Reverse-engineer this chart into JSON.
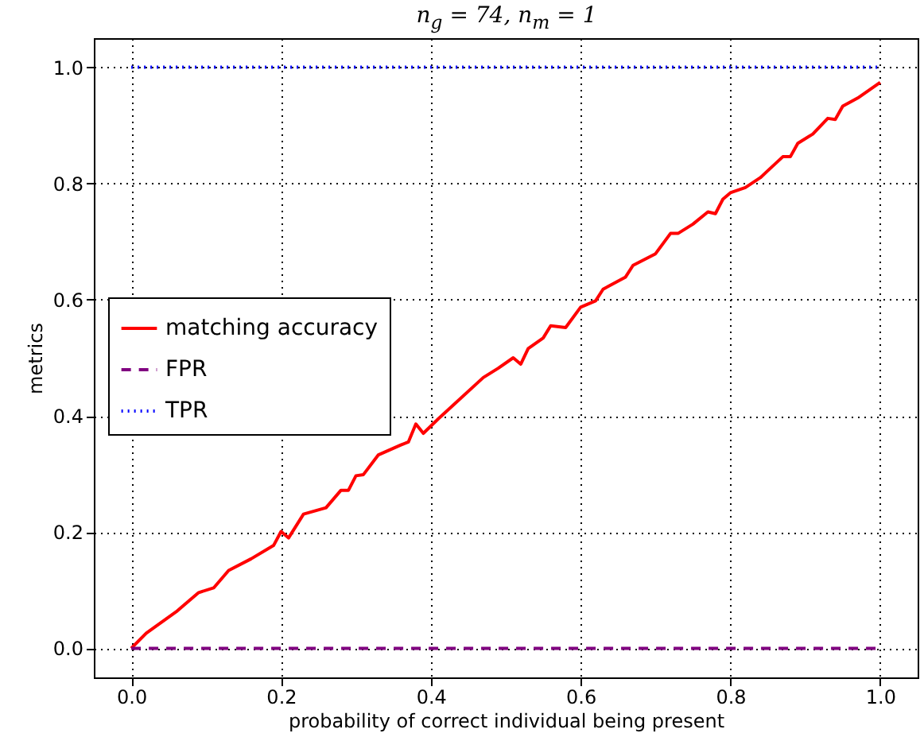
{
  "chart_data": {
    "type": "line",
    "title": "n$_{g}$ = 74, n$_{m}$ = 1",
    "xlabel": "probability of correct individual being present",
    "ylabel": "metrics",
    "xlim": [
      -0.05,
      1.05
    ],
    "ylim": [
      -0.05,
      1.05
    ],
    "xticks": [
      {
        "value": 0,
        "label": "0.0"
      },
      {
        "value": 0.2,
        "label": "0.2"
      },
      {
        "value": 0.4,
        "label": "0.4"
      },
      {
        "value": 0.6,
        "label": "0.6"
      },
      {
        "value": 0.8,
        "label": "0.8"
      },
      {
        "value": 1,
        "label": "1.0"
      }
    ],
    "yticks": [
      {
        "value": 0,
        "label": "0.0"
      },
      {
        "value": 0.2,
        "label": "0.2"
      },
      {
        "value": 0.4,
        "label": "0.4"
      },
      {
        "value": 0.6,
        "label": "0.6"
      },
      {
        "value": 0.8,
        "label": "0.8"
      },
      {
        "value": 1,
        "label": "1.0"
      }
    ],
    "grid": true,
    "legend": "left",
    "marker": "none",
    "series": [
      {
        "name": "matching accuracy",
        "color": "#ff0000",
        "line_style": "solid",
        "x": [
          0,
          0.02,
          0.06,
          0.09,
          0.11,
          0.13,
          0.16,
          0.19,
          0.2,
          0.21,
          0.23,
          0.26,
          0.28,
          0.29,
          0.3,
          0.31,
          0.33,
          0.36,
          0.37,
          0.38,
          0.39,
          0.41,
          0.47,
          0.49,
          0.51,
          0.52,
          0.53,
          0.55,
          0.56,
          0.58,
          0.6,
          0.62,
          0.63,
          0.66,
          0.67,
          0.7,
          0.72,
          0.73,
          0.75,
          0.77,
          0.78,
          0.79,
          0.8,
          0.82,
          0.84,
          0.85,
          0.87,
          0.88,
          0.89,
          0.91,
          0.93,
          0.94,
          0.95,
          0.97,
          1
        ],
        "values": [
          0,
          0.026,
          0.063,
          0.096,
          0.104,
          0.134,
          0.154,
          0.177,
          0.201,
          0.19,
          0.231,
          0.242,
          0.272,
          0.272,
          0.297,
          0.299,
          0.333,
          0.35,
          0.355,
          0.386,
          0.37,
          0.395,
          0.466,
          0.482,
          0.5,
          0.489,
          0.516,
          0.534,
          0.555,
          0.552,
          0.587,
          0.598,
          0.618,
          0.639,
          0.659,
          0.679,
          0.714,
          0.714,
          0.73,
          0.751,
          0.748,
          0.773,
          0.784,
          0.793,
          0.81,
          0.822,
          0.846,
          0.846,
          0.869,
          0.885,
          0.912,
          0.91,
          0.933,
          0.947,
          0.974
        ]
      },
      {
        "name": "FPR",
        "color": "#800080",
        "line_style": "dashed",
        "x": [
          0,
          1
        ],
        "values": [
          0,
          0
        ]
      },
      {
        "name": "TPR",
        "color": "#0000ff",
        "line_style": "dotted",
        "x": [
          0,
          1
        ],
        "values": [
          1,
          1
        ]
      }
    ]
  }
}
